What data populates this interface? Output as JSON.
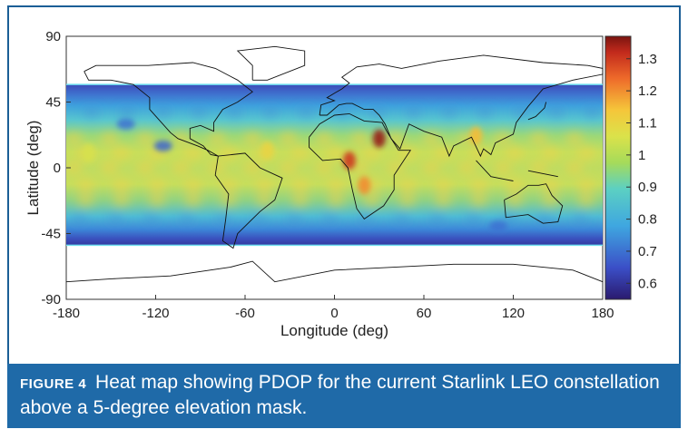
{
  "figure": {
    "label": "FIGURE 4",
    "caption": "Heat map showing PDOP for the current Starlink LEO constellation above a 5-degree elevation mask."
  },
  "chart_data": {
    "type": "heatmap",
    "xlabel": "Longitude (deg)",
    "ylabel": "Latitude (deg)",
    "xlim": [
      -180,
      180
    ],
    "ylim": [
      -90,
      90
    ],
    "xticks": [
      -180,
      -120,
      -60,
      0,
      60,
      120,
      180
    ],
    "yticks": [
      90,
      45,
      0,
      -45,
      -90
    ],
    "coverage_lat_band": [
      -53,
      57
    ],
    "colorbar": {
      "min": 0.55,
      "max": 1.37,
      "ticks": [
        1.3,
        1.2,
        1.1,
        1,
        0.9,
        0.8,
        0.7,
        0.6
      ],
      "colormap": "jet"
    },
    "hotspots": [
      {
        "lon": 10,
        "lat": 5,
        "value": 1.3
      },
      {
        "lon": 30,
        "lat": 20,
        "value": 1.35
      },
      {
        "lon": 20,
        "lat": -12,
        "value": 1.2
      },
      {
        "lon": -45,
        "lat": 12,
        "value": 1.1
      },
      {
        "lon": 95,
        "lat": 22,
        "value": 1.15
      },
      {
        "lon": -165,
        "lat": 10,
        "value": 1.05
      }
    ],
    "lowspots": [
      {
        "lon": -140,
        "lat": 30,
        "value": 0.7
      },
      {
        "lon": -115,
        "lat": 15,
        "value": 0.68
      },
      {
        "lon": 110,
        "lat": -40,
        "value": 0.7
      }
    ]
  }
}
